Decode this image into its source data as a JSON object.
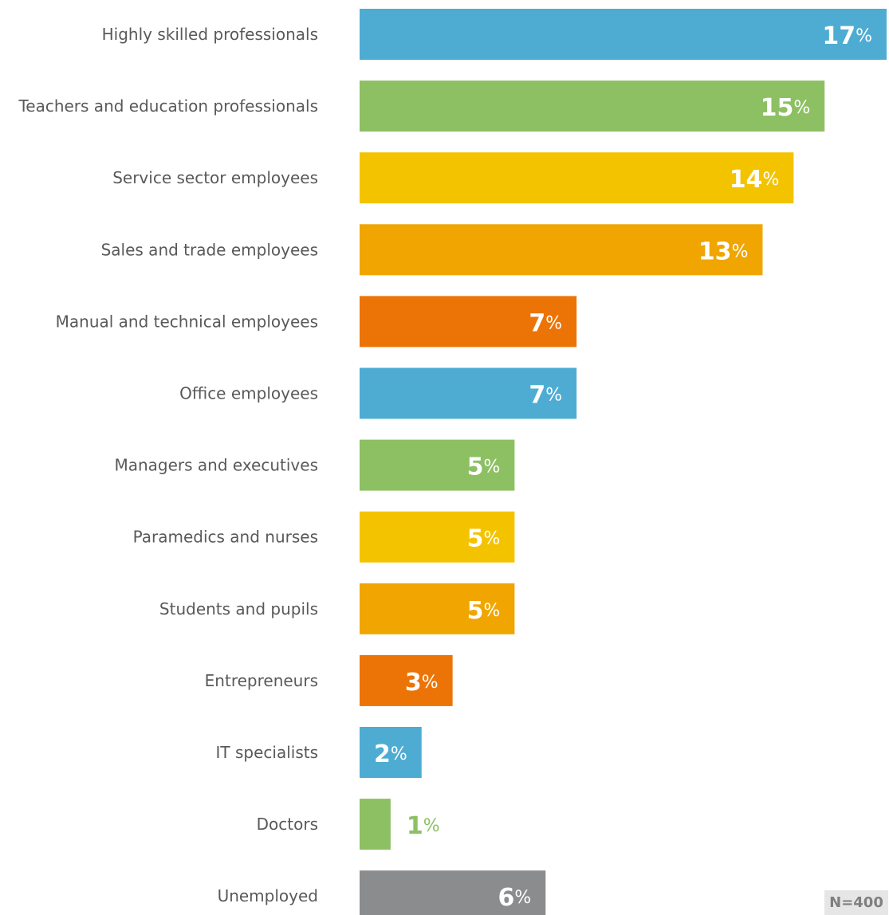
{
  "chart_data": {
    "type": "bar",
    "orientation": "horizontal",
    "categories": [
      "Highly skilled professionals",
      "Teachers and education professionals",
      "Service sector employees",
      "Sales and trade employees",
      "Manual and technical employees",
      "Office employees",
      "Managers and executives",
      "Paramedics and nurses",
      "Students and pupils",
      "Entrepreneurs",
      "IT specialists",
      "Doctors",
      "Unemployed"
    ],
    "values": [
      17,
      15,
      14,
      13,
      7,
      7,
      5,
      5,
      5,
      3,
      2,
      1,
      6
    ],
    "value_suffix": "%",
    "colors": [
      "#4eacd3",
      "#8dc063",
      "#f4c300",
      "#f0a500",
      "#ec7406",
      "#4eacd3",
      "#8dc063",
      "#f4c300",
      "#f0a500",
      "#ec7406",
      "#4eacd3",
      "#8dc063",
      "#8a8c8d"
    ],
    "xlim": [
      0,
      17
    ],
    "grid": false,
    "legend": "none",
    "title": "",
    "xlabel": "",
    "ylabel": ""
  },
  "footnote": "N=400"
}
